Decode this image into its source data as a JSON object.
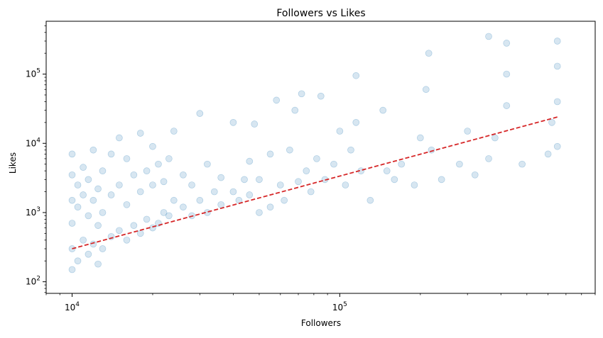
{
  "chart_data": {
    "type": "scatter",
    "title": "Followers vs Likes",
    "xlabel": "Followers",
    "ylabel": "Likes",
    "x_scale": "log",
    "y_scale": "log",
    "xlim": [
      8000,
      900000
    ],
    "ylim": [
      68,
      580000
    ],
    "grid": false,
    "colors": {
      "points": "#1f77b4",
      "trend": "#d62728",
      "axes": "#000000"
    },
    "x_ticks": [
      {
        "value": 10000,
        "base": "10",
        "exp": "4"
      },
      {
        "value": 100000,
        "base": "10",
        "exp": "5"
      }
    ],
    "y_ticks": [
      {
        "value": 100,
        "base": "10",
        "exp": "2"
      },
      {
        "value": 1000,
        "base": "10",
        "exp": "3"
      },
      {
        "value": 10000,
        "base": "10",
        "exp": "4"
      },
      {
        "value": 100000,
        "base": "10",
        "exp": "5"
      }
    ],
    "series": [
      {
        "points": [
          [
            10000,
            150
          ],
          [
            10000,
            300
          ],
          [
            10000,
            700
          ],
          [
            10000,
            1500
          ],
          [
            10000,
            3500
          ],
          [
            10000,
            7000
          ],
          [
            10500,
            200
          ],
          [
            10500,
            1200
          ],
          [
            10500,
            2500
          ],
          [
            11000,
            400
          ],
          [
            11000,
            1800
          ],
          [
            11000,
            4500
          ],
          [
            11500,
            250
          ],
          [
            11500,
            900
          ],
          [
            11500,
            3000
          ],
          [
            12000,
            350
          ],
          [
            12000,
            1500
          ],
          [
            12000,
            8000
          ],
          [
            12500,
            180
          ],
          [
            12500,
            650
          ],
          [
            12500,
            2200
          ],
          [
            13000,
            300
          ],
          [
            13000,
            1000
          ],
          [
            13000,
            4000
          ],
          [
            14000,
            450
          ],
          [
            14000,
            1800
          ],
          [
            14000,
            7000
          ],
          [
            15000,
            550
          ],
          [
            15000,
            2500
          ],
          [
            15000,
            12000
          ],
          [
            16000,
            400
          ],
          [
            16000,
            1300
          ],
          [
            16000,
            6000
          ],
          [
            17000,
            650
          ],
          [
            17000,
            3500
          ],
          [
            18000,
            500
          ],
          [
            18000,
            2000
          ],
          [
            18000,
            14000
          ],
          [
            19000,
            800
          ],
          [
            19000,
            4000
          ],
          [
            20000,
            600
          ],
          [
            20000,
            2500
          ],
          [
            20000,
            9000
          ],
          [
            21000,
            700
          ],
          [
            21000,
            5000
          ],
          [
            22000,
            1000
          ],
          [
            22000,
            2800
          ],
          [
            23000,
            900
          ],
          [
            23000,
            6000
          ],
          [
            24000,
            1500
          ],
          [
            24000,
            15000
          ],
          [
            26000,
            1200
          ],
          [
            26000,
            3500
          ],
          [
            28000,
            900
          ],
          [
            28000,
            2500
          ],
          [
            30000,
            1500
          ],
          [
            30000,
            27000
          ],
          [
            32000,
            1000
          ],
          [
            32000,
            5000
          ],
          [
            34000,
            2000
          ],
          [
            36000,
            1300
          ],
          [
            36000,
            3200
          ],
          [
            40000,
            2000
          ],
          [
            40000,
            20000
          ],
          [
            42000,
            1500
          ],
          [
            44000,
            3000
          ],
          [
            46000,
            1800
          ],
          [
            46000,
            5500
          ],
          [
            48000,
            19000
          ],
          [
            50000,
            3000
          ],
          [
            50000,
            1000
          ],
          [
            55000,
            1200
          ],
          [
            55000,
            7000
          ],
          [
            58000,
            42000
          ],
          [
            60000,
            2500
          ],
          [
            62000,
            1500
          ],
          [
            65000,
            8000
          ],
          [
            68000,
            30000
          ],
          [
            70000,
            2800
          ],
          [
            72000,
            52000
          ],
          [
            75000,
            4000
          ],
          [
            78000,
            2000
          ],
          [
            82000,
            6000
          ],
          [
            85000,
            48000
          ],
          [
            88000,
            3000
          ],
          [
            95000,
            5000
          ],
          [
            100000,
            15000
          ],
          [
            105000,
            2500
          ],
          [
            110000,
            8000
          ],
          [
            115000,
            95000
          ],
          [
            115000,
            20000
          ],
          [
            120000,
            4000
          ],
          [
            130000,
            1500
          ],
          [
            145000,
            30000
          ],
          [
            150000,
            4000
          ],
          [
            160000,
            3000
          ],
          [
            170000,
            5000
          ],
          [
            190000,
            2500
          ],
          [
            200000,
            12000
          ],
          [
            210000,
            60000
          ],
          [
            215000,
            200000
          ],
          [
            220000,
            8000
          ],
          [
            240000,
            3000
          ],
          [
            280000,
            5000
          ],
          [
            300000,
            15000
          ],
          [
            320000,
            3500
          ],
          [
            360000,
            350000
          ],
          [
            360000,
            6000
          ],
          [
            380000,
            12000
          ],
          [
            420000,
            280000
          ],
          [
            420000,
            100000
          ],
          [
            420000,
            35000
          ],
          [
            480000,
            5000
          ],
          [
            600000,
            7000
          ],
          [
            620000,
            20000
          ],
          [
            650000,
            300000
          ],
          [
            650000,
            130000
          ],
          [
            650000,
            40000
          ],
          [
            650000,
            9000
          ]
        ]
      }
    ],
    "trend_line": {
      "x": [
        10000,
        650000
      ],
      "y": [
        300,
        24000
      ]
    }
  }
}
